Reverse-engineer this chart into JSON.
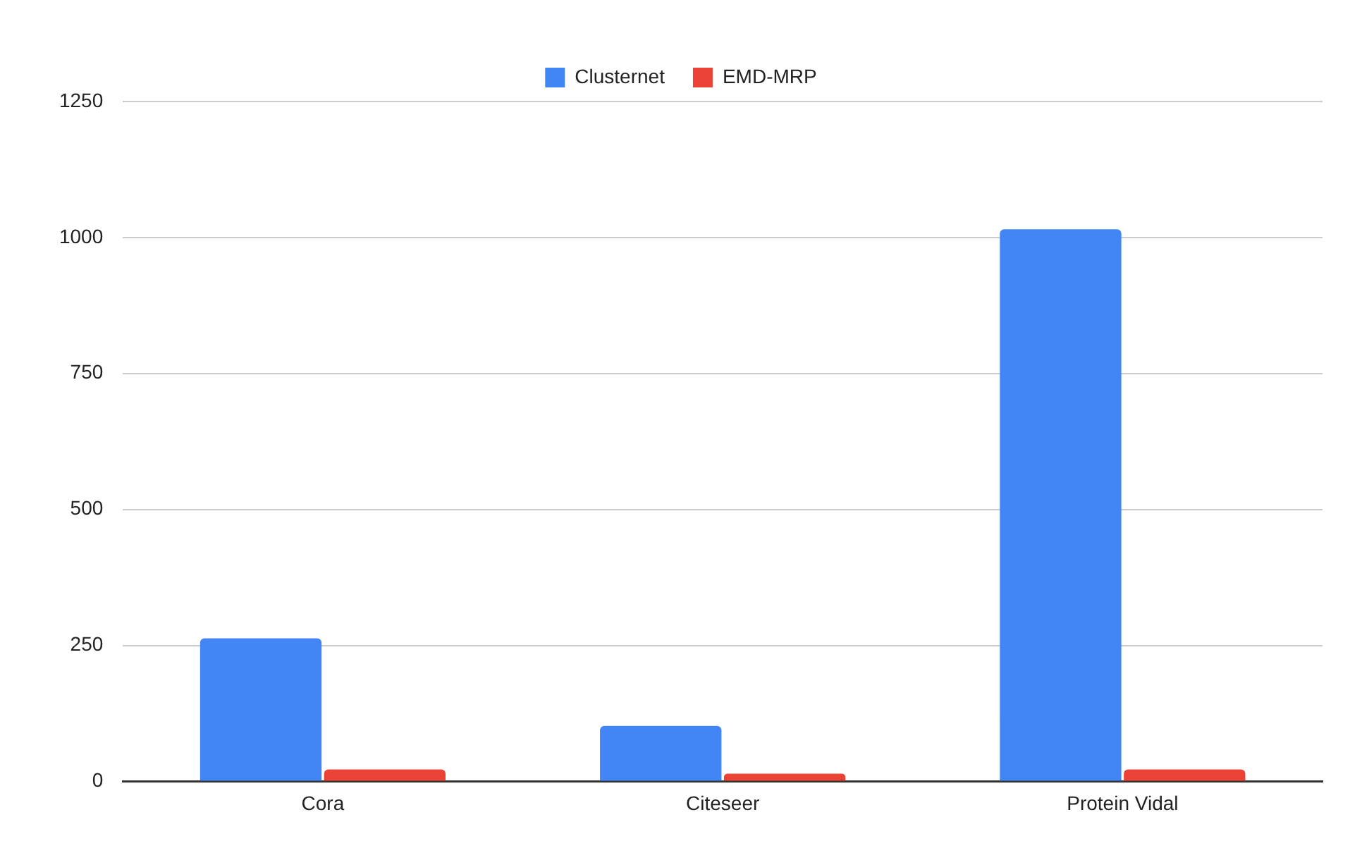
{
  "chart_data": {
    "type": "bar",
    "categories": [
      "Cora",
      "Citeseer",
      "Protein Vidal"
    ],
    "series": [
      {
        "name": "Clusternet",
        "color": "#4285f4",
        "values": [
          263,
          102,
          1015
        ]
      },
      {
        "name": "EMD-MRP",
        "color": "#ea4335",
        "values": [
          22,
          14,
          22
        ]
      }
    ],
    "ylim": [
      0,
      1250
    ],
    "yticks": [
      0,
      250,
      500,
      750,
      1000,
      1250
    ],
    "grid": "y",
    "legend": "top"
  }
}
